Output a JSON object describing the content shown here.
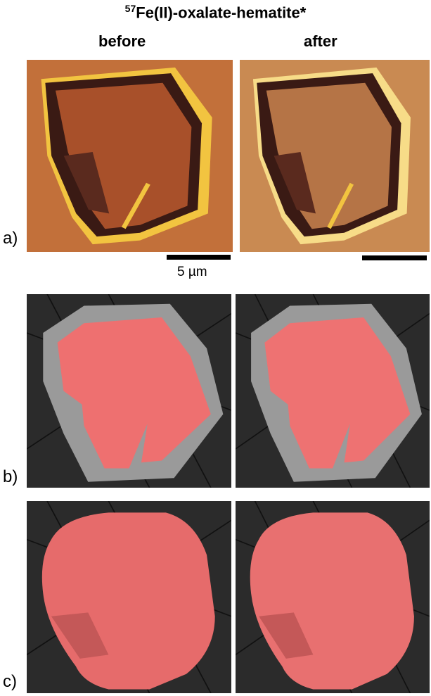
{
  "title": {
    "superscript": "57",
    "text": "Fe(II)-oxalate-hematite*"
  },
  "columns": [
    "before",
    "after"
  ],
  "rows": [
    "a)",
    "b)",
    "c)"
  ],
  "scale_bar": "5 µm"
}
